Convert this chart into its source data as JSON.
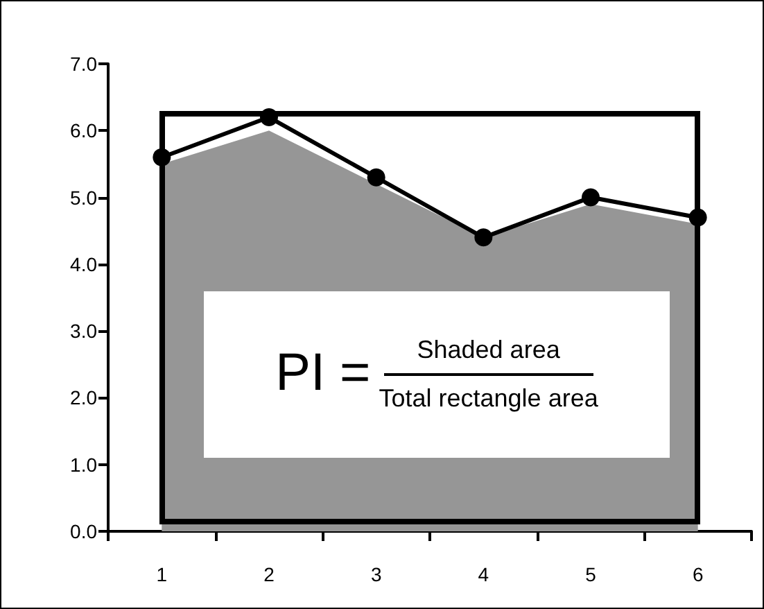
{
  "chart_data": {
    "type": "line",
    "categories": [
      "1",
      "2",
      "3",
      "4",
      "5",
      "6"
    ],
    "series": [
      {
        "type": "area",
        "color": "#969696",
        "marker": "none",
        "values": [
          5.5,
          6.0,
          5.2,
          4.4,
          4.9,
          4.6
        ]
      },
      {
        "color": "#000000",
        "values": [
          5.6,
          6.2,
          5.3,
          4.4,
          5.0,
          4.7
        ]
      }
    ],
    "ylim": [
      0,
      7
    ],
    "yticks": [
      {
        "value": 0,
        "label": "0.0"
      },
      {
        "value": 1,
        "label": "1.0"
      },
      {
        "value": 2,
        "label": "2.0"
      },
      {
        "value": 3,
        "label": "3.0"
      },
      {
        "value": 4,
        "label": "4.0"
      },
      {
        "value": 5,
        "label": "5.0"
      },
      {
        "value": 6,
        "label": "6.0"
      },
      {
        "value": 7,
        "label": "7.0"
      }
    ],
    "annotations": [
      "PI =",
      "Shaded area",
      "Total rectangle area"
    ],
    "marker": "circle",
    "line_style": "solid",
    "grid": false
  }
}
